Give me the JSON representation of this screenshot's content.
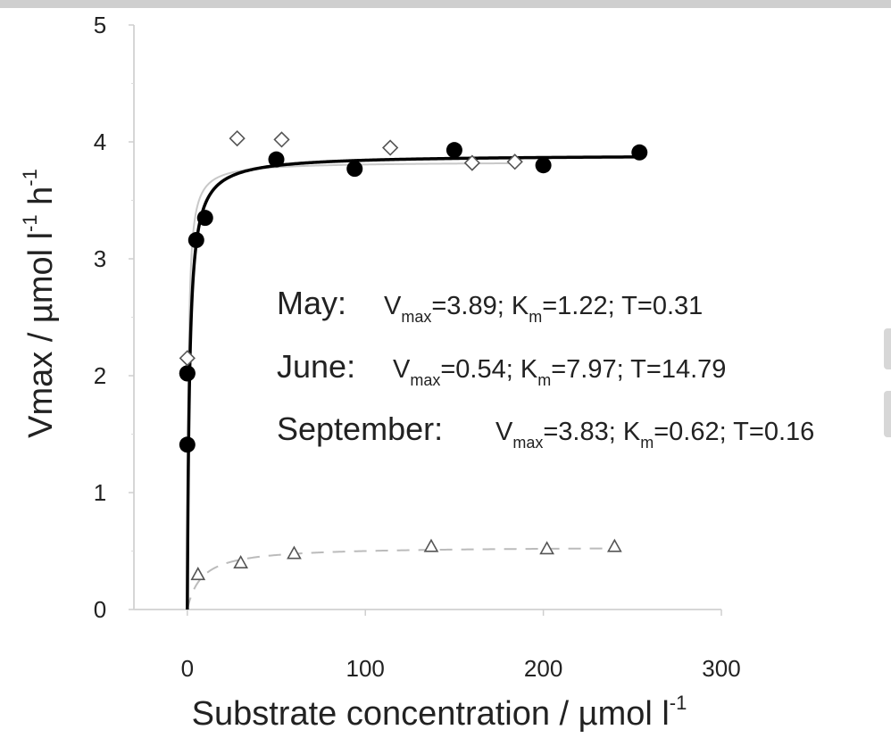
{
  "chart_data": {
    "type": "scatter",
    "xlabel": "Substrate concentration / µmol l",
    "xlabel_sup": "-1",
    "ylabel": "Vmax / µmol l",
    "ylabel_sup1": "-1",
    "ylabel_mid": " h",
    "ylabel_sup2": "-1",
    "xlim": [
      -30,
      300
    ],
    "ylim": [
      0,
      5
    ],
    "x_ticks": [
      0,
      100,
      200,
      300
    ],
    "y_ticks": [
      0,
      1,
      2,
      3,
      4,
      5
    ],
    "x_tick_labels": [
      "0",
      "100",
      "200",
      "300"
    ],
    "y_tick_labels": [
      "0",
      "1",
      "2",
      "3",
      "4",
      "5"
    ],
    "grid": false,
    "legend": "none",
    "series": [
      {
        "marker": "filled-circle",
        "color": "#000000",
        "x": [
          0,
          0,
          0,
          5,
          10,
          50,
          94,
          150,
          200,
          254
        ],
        "y": [
          1.41,
          2.02,
          2.02,
          3.16,
          3.35,
          3.85,
          3.77,
          3.93,
          3.8,
          3.91
        ],
        "fit": {
          "model": "michaelis-menten",
          "vmax": 3.89,
          "km": 1.22,
          "t": 0.31,
          "style": "solid",
          "color": "#000000"
        }
      },
      {
        "marker": "open-triangle",
        "color": "#555555",
        "x": [
          6,
          30,
          60,
          137,
          202,
          240
        ],
        "y": [
          0.3,
          0.4,
          0.48,
          0.54,
          0.52,
          0.54
        ],
        "fit": {
          "model": "michaelis-menten",
          "vmax": 0.54,
          "km": 7.97,
          "t": 14.79,
          "style": "dashed",
          "color": "#bbbbbb"
        }
      },
      {
        "marker": "open-diamond",
        "color": "#555555",
        "x": [
          0,
          28,
          53,
          114,
          160,
          184
        ],
        "y": [
          2.15,
          4.03,
          4.02,
          3.95,
          3.82,
          3.83
        ],
        "fit": {
          "model": "michaelis-menten",
          "vmax": 3.83,
          "km": 0.62,
          "t": 0.16,
          "style": "solid",
          "color": "#c8c8c8"
        }
      }
    ],
    "annotations": [
      {
        "name": "May:",
        "vmax": "=3.89; K",
        "km": "=1.22; T=0.31"
      },
      {
        "name": "June:",
        "vmax": "=0.54; K",
        "km": "=7.97; T=14.79"
      },
      {
        "name": "September:",
        "vmax": "=3.83; K",
        "km": "=0.62; T=0.16"
      }
    ],
    "annotation_v": "V",
    "annotation_sub_max": "max",
    "annotation_sub_m": "m"
  }
}
